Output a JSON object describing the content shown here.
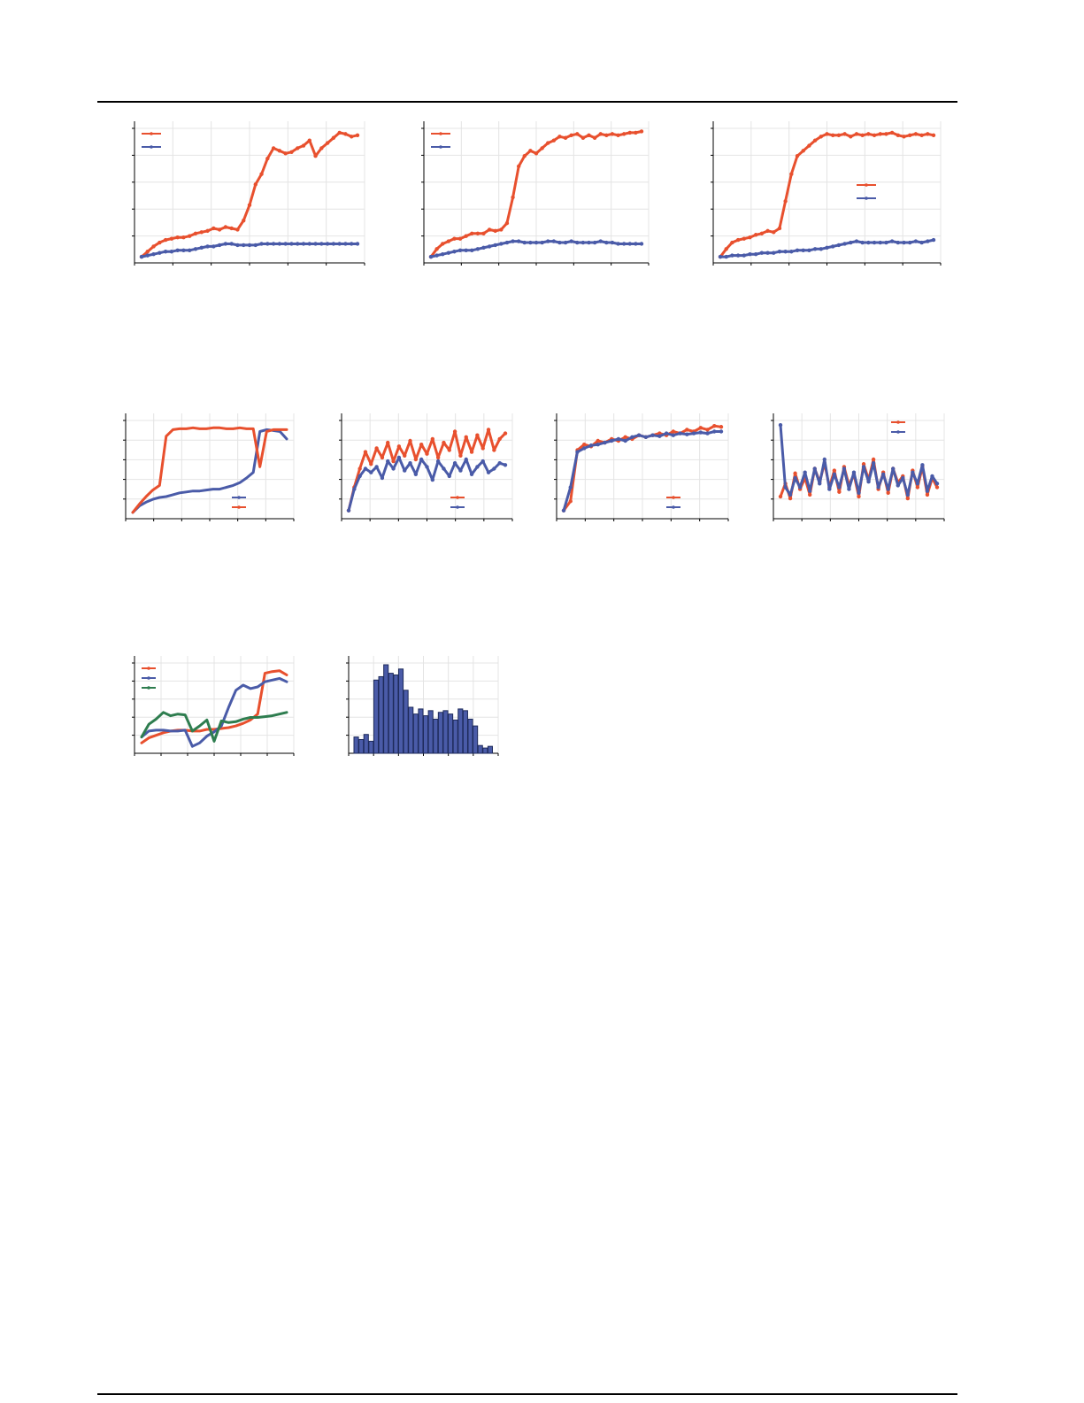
{
  "colors": {
    "red": "#e8502e",
    "blue": "#4a5ba8",
    "green": "#2e7d4f",
    "grid": "#e4e4e4",
    "axis": "#000000"
  },
  "chart_data": [
    {
      "type": "line",
      "grid": true,
      "legend": "top-left",
      "xlim": [
        0,
        1
      ],
      "ylim": [
        0,
        1
      ],
      "series": [
        {
          "color": "red",
          "markers": true,
          "values": [
            0.02,
            0.06,
            0.1,
            0.13,
            0.15,
            0.16,
            0.17,
            0.17,
            0.18,
            0.2,
            0.21,
            0.22,
            0.24,
            0.23,
            0.25,
            0.24,
            0.23,
            0.3,
            0.42,
            0.58,
            0.66,
            0.78,
            0.86,
            0.84,
            0.82,
            0.83,
            0.86,
            0.88,
            0.92,
            0.8,
            0.86,
            0.9,
            0.94,
            0.98,
            0.97,
            0.95,
            0.96
          ]
        },
        {
          "color": "blue",
          "markers": true,
          "values": [
            0.02,
            0.03,
            0.04,
            0.05,
            0.06,
            0.06,
            0.07,
            0.07,
            0.07,
            0.08,
            0.09,
            0.1,
            0.1,
            0.11,
            0.12,
            0.12,
            0.11,
            0.11,
            0.11,
            0.11,
            0.12,
            0.12,
            0.12,
            0.12,
            0.12,
            0.12,
            0.12,
            0.12,
            0.12,
            0.12,
            0.12,
            0.12,
            0.12,
            0.12,
            0.12,
            0.12,
            0.12
          ]
        }
      ]
    },
    {
      "type": "line",
      "grid": true,
      "legend": "top-left",
      "xlim": [
        0,
        1
      ],
      "ylim": [
        0,
        1
      ],
      "series": [
        {
          "color": "red",
          "markers": true,
          "values": [
            0.02,
            0.08,
            0.12,
            0.14,
            0.16,
            0.16,
            0.18,
            0.2,
            0.2,
            0.2,
            0.23,
            0.22,
            0.23,
            0.28,
            0.48,
            0.72,
            0.8,
            0.84,
            0.82,
            0.86,
            0.9,
            0.92,
            0.95,
            0.94,
            0.96,
            0.97,
            0.94,
            0.96,
            0.94,
            0.97,
            0.96,
            0.97,
            0.96,
            0.97,
            0.98,
            0.98,
            0.99
          ]
        },
        {
          "color": "blue",
          "markers": true,
          "values": [
            0.02,
            0.03,
            0.04,
            0.05,
            0.06,
            0.07,
            0.07,
            0.07,
            0.08,
            0.09,
            0.1,
            0.11,
            0.12,
            0.13,
            0.14,
            0.14,
            0.13,
            0.13,
            0.13,
            0.13,
            0.14,
            0.14,
            0.13,
            0.13,
            0.14,
            0.13,
            0.13,
            0.13,
            0.13,
            0.14,
            0.13,
            0.13,
            0.12,
            0.12,
            0.12,
            0.12,
            0.12
          ]
        }
      ]
    },
    {
      "type": "line",
      "grid": true,
      "legend": "center-right",
      "xlim": [
        0,
        1
      ],
      "ylim": [
        0,
        1
      ],
      "series": [
        {
          "color": "red",
          "markers": true,
          "values": [
            0.02,
            0.08,
            0.13,
            0.15,
            0.16,
            0.17,
            0.19,
            0.2,
            0.22,
            0.21,
            0.24,
            0.45,
            0.66,
            0.8,
            0.84,
            0.88,
            0.92,
            0.95,
            0.97,
            0.96,
            0.96,
            0.97,
            0.95,
            0.97,
            0.96,
            0.97,
            0.96,
            0.97,
            0.97,
            0.98,
            0.96,
            0.95,
            0.96,
            0.97,
            0.96,
            0.97,
            0.96
          ]
        },
        {
          "color": "blue",
          "markers": true,
          "values": [
            0.02,
            0.02,
            0.03,
            0.03,
            0.03,
            0.04,
            0.04,
            0.05,
            0.05,
            0.05,
            0.06,
            0.06,
            0.06,
            0.07,
            0.07,
            0.07,
            0.08,
            0.08,
            0.09,
            0.1,
            0.11,
            0.12,
            0.13,
            0.14,
            0.13,
            0.13,
            0.13,
            0.13,
            0.13,
            0.14,
            0.13,
            0.13,
            0.13,
            0.14,
            0.13,
            0.14,
            0.15
          ]
        }
      ]
    },
    {
      "type": "line",
      "grid": true,
      "legend": "bottom-right",
      "xlim": [
        0,
        1
      ],
      "ylim": [
        0,
        1
      ],
      "series": [
        {
          "color": "blue",
          "markers": false,
          "values": [
            0.03,
            0.1,
            0.14,
            0.17,
            0.19,
            0.2,
            0.22,
            0.24,
            0.25,
            0.26,
            0.26,
            0.27,
            0.28,
            0.28,
            0.3,
            0.32,
            0.35,
            0.4,
            0.46,
            0.9,
            0.92,
            0.91,
            0.9,
            0.82
          ]
        },
        {
          "color": "red",
          "markers": false,
          "values": [
            0.03,
            0.12,
            0.2,
            0.27,
            0.32,
            0.85,
            0.92,
            0.93,
            0.93,
            0.94,
            0.93,
            0.93,
            0.94,
            0.94,
            0.93,
            0.93,
            0.94,
            0.93,
            0.93,
            0.52,
            0.9,
            0.92,
            0.92,
            0.92
          ]
        }
      ]
    },
    {
      "type": "line",
      "grid": true,
      "legend": "bottom-right",
      "xlim": [
        0,
        1
      ],
      "ylim": [
        0,
        1
      ],
      "series": [
        {
          "color": "red",
          "markers": true,
          "values": [
            0.05,
            0.3,
            0.5,
            0.68,
            0.55,
            0.72,
            0.62,
            0.78,
            0.58,
            0.74,
            0.64,
            0.8,
            0.6,
            0.76,
            0.66,
            0.82,
            0.62,
            0.78,
            0.7,
            0.9,
            0.64,
            0.84,
            0.68,
            0.86,
            0.72,
            0.92,
            0.7,
            0.82,
            0.88
          ]
        },
        {
          "color": "blue",
          "markers": true,
          "values": [
            0.05,
            0.28,
            0.42,
            0.5,
            0.46,
            0.52,
            0.4,
            0.58,
            0.5,
            0.62,
            0.48,
            0.56,
            0.44,
            0.6,
            0.52,
            0.38,
            0.58,
            0.5,
            0.42,
            0.56,
            0.48,
            0.6,
            0.44,
            0.52,
            0.58,
            0.46,
            0.5,
            0.56,
            0.54
          ]
        }
      ]
    },
    {
      "type": "line",
      "grid": true,
      "legend": "bottom-right",
      "xlim": [
        0,
        1
      ],
      "ylim": [
        0,
        1
      ],
      "series": [
        {
          "color": "red",
          "markers": true,
          "values": [
            0.05,
            0.15,
            0.7,
            0.76,
            0.74,
            0.8,
            0.78,
            0.82,
            0.8,
            0.84,
            0.82,
            0.86,
            0.84,
            0.86,
            0.88,
            0.86,
            0.9,
            0.88,
            0.92,
            0.9,
            0.94,
            0.92,
            0.96,
            0.95
          ]
        },
        {
          "color": "blue",
          "markers": true,
          "values": [
            0.05,
            0.3,
            0.68,
            0.72,
            0.75,
            0.76,
            0.78,
            0.8,
            0.82,
            0.8,
            0.84,
            0.86,
            0.84,
            0.86,
            0.85,
            0.88,
            0.86,
            0.88,
            0.87,
            0.88,
            0.89,
            0.88,
            0.9,
            0.9
          ]
        }
      ]
    },
    {
      "type": "line",
      "grid": true,
      "legend": "top-right",
      "xlim": [
        0,
        1
      ],
      "ylim": [
        0,
        1
      ],
      "series": [
        {
          "color": "red",
          "markers": true,
          "values": [
            0.2,
            0.34,
            0.18,
            0.45,
            0.28,
            0.4,
            0.22,
            0.5,
            0.36,
            0.56,
            0.3,
            0.48,
            0.25,
            0.52,
            0.32,
            0.44,
            0.2,
            0.55,
            0.38,
            0.6,
            0.28,
            0.46,
            0.24,
            0.5,
            0.35,
            0.42,
            0.18,
            0.48,
            0.3,
            0.52,
            0.22,
            0.4,
            0.3
          ]
        },
        {
          "color": "blue",
          "markers": true,
          "values": [
            0.97,
            0.3,
            0.22,
            0.4,
            0.3,
            0.46,
            0.26,
            0.5,
            0.34,
            0.6,
            0.28,
            0.44,
            0.3,
            0.5,
            0.28,
            0.46,
            0.24,
            0.52,
            0.36,
            0.56,
            0.3,
            0.44,
            0.28,
            0.5,
            0.32,
            0.4,
            0.22,
            0.46,
            0.34,
            0.54,
            0.26,
            0.42,
            0.34
          ]
        }
      ]
    },
    {
      "type": "line",
      "grid": true,
      "legend": "top-left",
      "xlim": [
        0,
        1
      ],
      "ylim": [
        0,
        1
      ],
      "series": [
        {
          "color": "red",
          "markers": false,
          "values": [
            0.08,
            0.14,
            0.17,
            0.2,
            0.22,
            0.23,
            0.23,
            0.22,
            0.22,
            0.24,
            0.24,
            0.25,
            0.26,
            0.28,
            0.31,
            0.35,
            0.42,
            0.9,
            0.92,
            0.93,
            0.88
          ]
        },
        {
          "color": "blue",
          "markers": false,
          "values": [
            0.15,
            0.22,
            0.23,
            0.23,
            0.22,
            0.22,
            0.23,
            0.04,
            0.08,
            0.16,
            0.21,
            0.28,
            0.5,
            0.7,
            0.76,
            0.72,
            0.74,
            0.8,
            0.82,
            0.84,
            0.8
          ]
        },
        {
          "color": "green",
          "markers": false,
          "values": [
            0.15,
            0.3,
            0.36,
            0.44,
            0.4,
            0.42,
            0.41,
            0.22,
            0.28,
            0.35,
            0.1,
            0.34,
            0.32,
            0.33,
            0.36,
            0.38,
            0.38,
            0.39,
            0.4,
            0.42,
            0.44
          ]
        }
      ]
    },
    {
      "type": "bar",
      "grid": true,
      "ylim": [
        0,
        1
      ],
      "values": [
        0.15,
        0.12,
        0.18,
        0.1,
        0.82,
        0.86,
        1.0,
        0.9,
        0.88,
        0.95,
        0.7,
        0.5,
        0.42,
        0.48,
        0.4,
        0.46,
        0.36,
        0.44,
        0.46,
        0.42,
        0.35,
        0.48,
        0.46,
        0.36,
        0.28,
        0.05,
        0.02,
        0.04
      ]
    }
  ]
}
